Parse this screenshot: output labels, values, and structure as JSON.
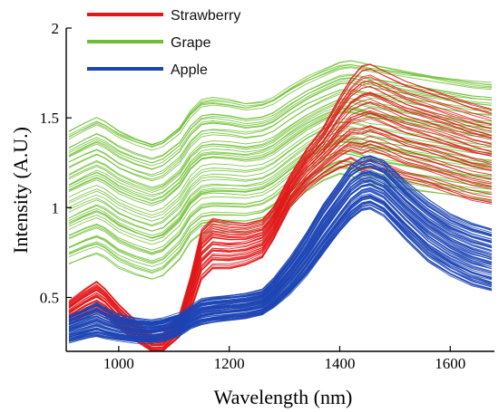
{
  "chart_data": {
    "type": "line",
    "title": "",
    "xlabel": "Wavelength (nm)",
    "ylabel": "Intensity (A.U.)",
    "xlim": [
      905,
      1680
    ],
    "ylim": [
      0.2,
      2.0
    ],
    "x_ticks": [
      1000,
      1200,
      1400,
      1600
    ],
    "x_tick_labels": [
      "1000",
      "1200",
      "1400",
      "1600"
    ],
    "y_ticks": [
      0.5,
      1.0,
      1.5,
      2.0
    ],
    "y_tick_labels": [
      "0.5",
      "1",
      "1.5",
      "2"
    ],
    "grid": false,
    "legend_position": "top-left",
    "x": [
      910,
      940,
      960,
      975,
      1000,
      1030,
      1060,
      1080,
      1110,
      1130,
      1150,
      1170,
      1200,
      1230,
      1260,
      1280,
      1310,
      1340,
      1370,
      1400,
      1420,
      1440,
      1455,
      1480,
      1520,
      1560,
      1600,
      1640,
      1675
    ],
    "series": [
      {
        "name": "Strawberry",
        "color": "#e01818",
        "curve_count": 45,
        "mean": [
          0.41,
          0.47,
          0.5,
          0.47,
          0.39,
          0.31,
          0.24,
          0.24,
          0.34,
          0.52,
          0.74,
          0.8,
          0.79,
          0.79,
          0.82,
          0.9,
          1.08,
          1.2,
          1.28,
          1.35,
          1.4,
          1.43,
          1.44,
          1.42,
          1.38,
          1.35,
          1.31,
          1.27,
          1.25
        ],
        "band_low": [
          0.35,
          0.4,
          0.42,
          0.4,
          0.33,
          0.26,
          0.2,
          0.2,
          0.28,
          0.42,
          0.6,
          0.66,
          0.66,
          0.68,
          0.72,
          0.82,
          1.0,
          1.1,
          1.17,
          1.22,
          1.24,
          1.2,
          1.22,
          1.2,
          1.15,
          1.12,
          1.08,
          1.04,
          1.02
        ],
        "band_high": [
          0.48,
          0.55,
          0.59,
          0.55,
          0.46,
          0.37,
          0.29,
          0.3,
          0.41,
          0.62,
          0.88,
          0.94,
          0.92,
          0.91,
          0.93,
          1.0,
          1.18,
          1.33,
          1.45,
          1.62,
          1.72,
          1.79,
          1.8,
          1.76,
          1.7,
          1.66,
          1.62,
          1.58,
          1.55
        ]
      },
      {
        "name": "Grape",
        "color": "#6cc030",
        "curve_count": 55,
        "mean": [
          1.02,
          1.07,
          1.1,
          1.09,
          1.05,
          1.01,
          0.98,
          1.0,
          1.07,
          1.15,
          1.21,
          1.23,
          1.22,
          1.2,
          1.21,
          1.23,
          1.31,
          1.38,
          1.45,
          1.5,
          1.5,
          1.49,
          1.48,
          1.46,
          1.43,
          1.4,
          1.37,
          1.35,
          1.33
        ],
        "band_low": [
          0.68,
          0.72,
          0.74,
          0.72,
          0.66,
          0.62,
          0.59,
          0.61,
          0.7,
          0.8,
          0.85,
          0.86,
          0.86,
          0.86,
          0.88,
          0.92,
          1.0,
          1.08,
          1.14,
          1.18,
          1.17,
          1.15,
          1.13,
          1.12,
          1.1,
          1.08,
          1.06,
          1.04,
          1.03
        ],
        "band_high": [
          1.44,
          1.49,
          1.52,
          1.5,
          1.45,
          1.41,
          1.38,
          1.4,
          1.47,
          1.56,
          1.62,
          1.63,
          1.62,
          1.6,
          1.61,
          1.63,
          1.69,
          1.74,
          1.78,
          1.82,
          1.83,
          1.82,
          1.81,
          1.8,
          1.78,
          1.76,
          1.74,
          1.72,
          1.71
        ]
      },
      {
        "name": "Apple",
        "color": "#1c44b4",
        "curve_count": 80,
        "mean": [
          0.33,
          0.36,
          0.38,
          0.36,
          0.33,
          0.32,
          0.31,
          0.32,
          0.35,
          0.39,
          0.42,
          0.43,
          0.44,
          0.45,
          0.47,
          0.52,
          0.62,
          0.74,
          0.88,
          1.0,
          1.08,
          1.13,
          1.14,
          1.1,
          0.98,
          0.88,
          0.8,
          0.75,
          0.72
        ],
        "band_low": [
          0.25,
          0.27,
          0.28,
          0.27,
          0.26,
          0.25,
          0.25,
          0.26,
          0.29,
          0.33,
          0.35,
          0.36,
          0.37,
          0.38,
          0.4,
          0.44,
          0.52,
          0.62,
          0.74,
          0.86,
          0.93,
          0.98,
          0.99,
          0.95,
          0.82,
          0.7,
          0.62,
          0.56,
          0.53
        ],
        "band_high": [
          0.4,
          0.44,
          0.47,
          0.44,
          0.4,
          0.38,
          0.37,
          0.38,
          0.41,
          0.45,
          0.49,
          0.5,
          0.51,
          0.52,
          0.54,
          0.6,
          0.72,
          0.86,
          1.02,
          1.15,
          1.24,
          1.28,
          1.29,
          1.26,
          1.14,
          1.04,
          0.96,
          0.91,
          0.88
        ]
      }
    ]
  }
}
